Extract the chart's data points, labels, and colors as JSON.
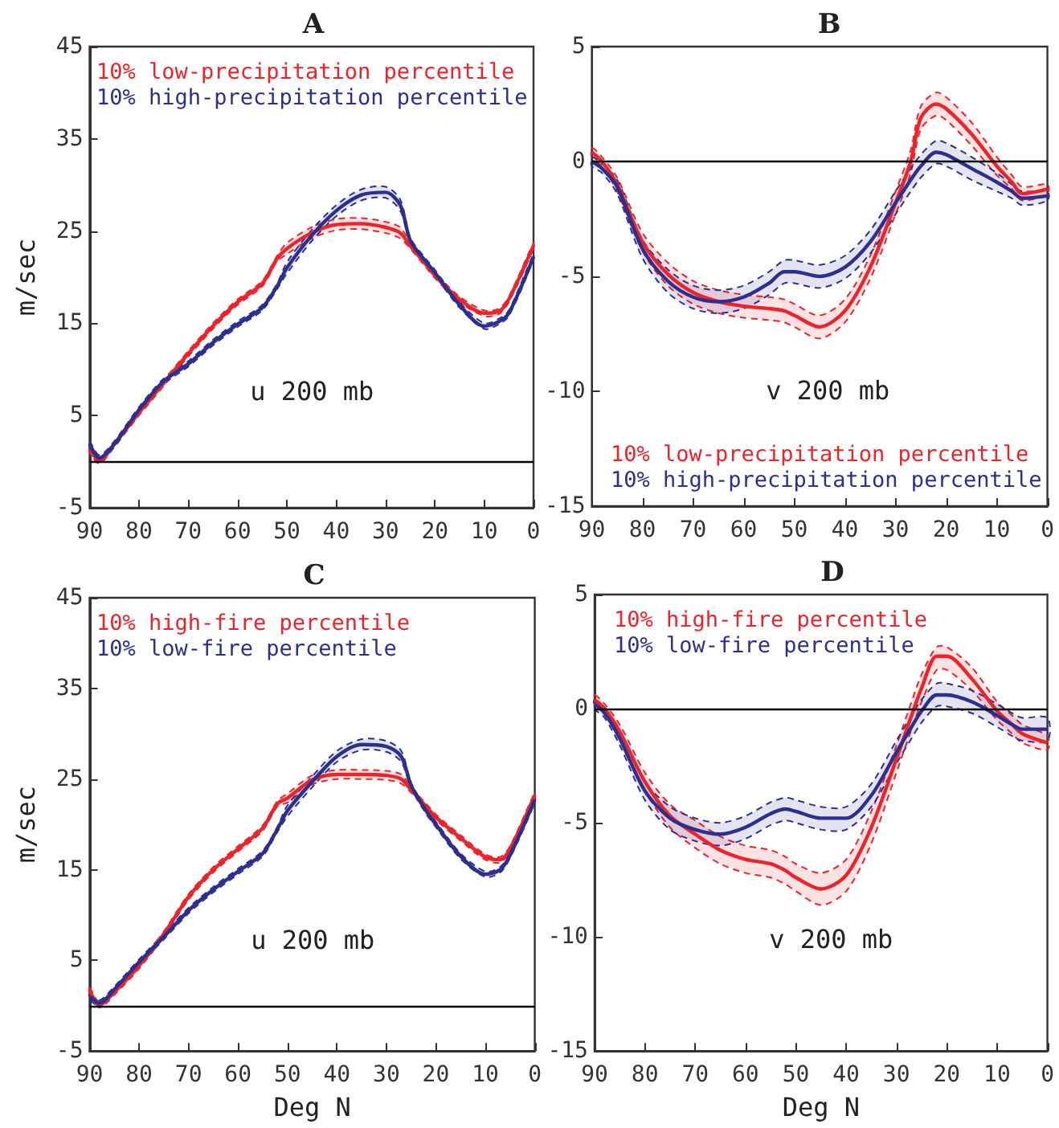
{
  "chart_data": [
    {
      "type": "line",
      "title": "A",
      "ylabel": "m/sec",
      "annotations": [
        "u 200 mb"
      ],
      "xlim": [
        90,
        0
      ],
      "xticks": [
        90,
        80,
        70,
        60,
        50,
        40,
        30,
        20,
        10,
        0
      ],
      "ylim": [
        -5,
        45
      ],
      "yticks": [
        -5,
        5,
        15,
        25,
        35,
        45
      ],
      "legend": "top left",
      "ref_lines": [
        {
          "axis": "y",
          "value": 0,
          "color": "#000000"
        }
      ],
      "x": [
        90,
        88,
        85,
        80,
        75,
        70,
        65,
        60,
        55,
        52,
        50,
        45,
        40,
        35,
        30,
        27,
        25,
        22,
        20,
        15,
        10,
        7,
        5,
        0
      ],
      "series": [
        {
          "name": "10% low-precipitation percentile",
          "color": "#ee2229",
          "values": [
            1.3,
            0.1,
            1.9,
            5.3,
            8.5,
            11.7,
            14.7,
            17.3,
            19.3,
            22.0,
            23.1,
            24.8,
            25.7,
            25.8,
            25.4,
            24.8,
            23.4,
            21.5,
            20.2,
            17.6,
            16.1,
            16.3,
            17.6,
            23.4
          ],
          "lower": [
            1.0,
            -0.2,
            1.6,
            5.0,
            8.2,
            11.4,
            14.4,
            17.0,
            19.0,
            21.7,
            22.5,
            24.2,
            25.1,
            25.2,
            24.8,
            24.2,
            23.1,
            21.2,
            19.9,
            17.3,
            15.8,
            16.0,
            17.3,
            23.1
          ],
          "upper": [
            1.6,
            0.4,
            2.2,
            5.6,
            8.8,
            12.0,
            15.0,
            17.6,
            19.6,
            22.3,
            23.7,
            25.4,
            26.3,
            26.4,
            26.0,
            25.4,
            23.7,
            21.8,
            20.5,
            17.9,
            16.4,
            16.6,
            17.9,
            23.7
          ]
        },
        {
          "name": "10% high-precipitation percentile",
          "color": "#2b2f8f",
          "values": [
            1.9,
            0.4,
            1.9,
            5.6,
            8.7,
            10.6,
            12.9,
            14.9,
            16.7,
            19.0,
            21.0,
            24.5,
            27.2,
            28.9,
            29.2,
            27.8,
            24.0,
            21.8,
            20.5,
            17.0,
            14.7,
            15.2,
            16.1,
            22.2
          ],
          "lower": [
            1.6,
            0.1,
            1.6,
            5.3,
            8.4,
            10.3,
            12.6,
            14.6,
            16.4,
            18.7,
            20.4,
            23.9,
            26.6,
            28.3,
            28.6,
            27.2,
            23.7,
            21.5,
            20.2,
            16.7,
            14.4,
            14.9,
            15.8,
            21.9
          ],
          "upper": [
            2.2,
            0.7,
            2.2,
            5.9,
            9.0,
            10.9,
            13.2,
            15.2,
            17.0,
            19.3,
            21.6,
            25.1,
            27.8,
            29.5,
            29.8,
            28.4,
            24.3,
            22.1,
            20.8,
            17.3,
            15.0,
            15.5,
            16.4,
            22.5
          ]
        }
      ]
    },
    {
      "type": "line",
      "title": "B",
      "annotations": [
        "v 200 mb"
      ],
      "xlim": [
        90,
        0
      ],
      "xticks": [
        90,
        80,
        70,
        60,
        50,
        40,
        30,
        20,
        10,
        0
      ],
      "ylim": [
        -15,
        5
      ],
      "yticks": [
        -15,
        -10,
        -5,
        0,
        5
      ],
      "legend": "bottom left",
      "ref_lines": [
        {
          "axis": "y",
          "value": 0,
          "color": "#000000"
        }
      ],
      "x": [
        90,
        88,
        85,
        80,
        75,
        70,
        65,
        60,
        55,
        52,
        50,
        45,
        40,
        35,
        30,
        27,
        25,
        22,
        20,
        15,
        10,
        7,
        5,
        0
      ],
      "series": [
        {
          "name": "10% low-precipitation percentile",
          "color": "#ee2229",
          "values": [
            0.4,
            0.0,
            -1.0,
            -3.5,
            -4.9,
            -5.7,
            -6.1,
            -6.3,
            -6.4,
            -6.5,
            -6.7,
            -7.2,
            -6.5,
            -4.6,
            -1.8,
            0.0,
            1.9,
            2.5,
            2.3,
            1.2,
            -0.2,
            -0.9,
            -1.4,
            -1.2
          ],
          "lower": [
            0.2,
            -0.2,
            -1.3,
            -3.9,
            -5.4,
            -6.2,
            -6.6,
            -6.8,
            -6.9,
            -7.0,
            -7.2,
            -7.7,
            -7.0,
            -5.1,
            -2.3,
            -0.5,
            1.4,
            2.0,
            1.8,
            0.7,
            -0.6,
            -1.2,
            -1.7,
            -1.4
          ],
          "upper": [
            0.6,
            0.2,
            -0.7,
            -3.1,
            -4.4,
            -5.2,
            -5.6,
            -5.8,
            -5.9,
            -6.0,
            -6.2,
            -6.7,
            -6.0,
            -4.1,
            -1.3,
            0.5,
            2.4,
            3.0,
            2.8,
            1.7,
            0.2,
            -0.6,
            -1.1,
            -1.0
          ]
        },
        {
          "name": "10% high-precipitation percentile",
          "color": "#2b2f8f",
          "values": [
            0.0,
            -0.3,
            -1.1,
            -3.8,
            -5.2,
            -5.9,
            -6.1,
            -5.9,
            -5.3,
            -4.8,
            -4.8,
            -5.0,
            -4.6,
            -3.5,
            -1.8,
            -0.8,
            -0.2,
            0.4,
            0.3,
            -0.3,
            -0.9,
            -1.3,
            -1.6,
            -1.5
          ],
          "lower": [
            -0.2,
            -0.5,
            -1.4,
            -4.2,
            -5.7,
            -6.4,
            -6.6,
            -6.4,
            -5.8,
            -5.3,
            -5.3,
            -5.5,
            -5.1,
            -4.0,
            -2.3,
            -1.3,
            -0.7,
            -0.1,
            -0.2,
            -0.8,
            -1.3,
            -1.6,
            -1.9,
            -1.7
          ],
          "upper": [
            0.2,
            -0.1,
            -0.8,
            -3.4,
            -4.7,
            -5.4,
            -5.6,
            -5.4,
            -4.8,
            -4.3,
            -4.3,
            -4.5,
            -4.1,
            -3.0,
            -1.3,
            -0.3,
            0.3,
            0.9,
            0.8,
            0.2,
            -0.5,
            -1.0,
            -1.3,
            -1.3
          ]
        }
      ]
    },
    {
      "type": "line",
      "title": "C",
      "xlabel": "Deg N",
      "ylabel": "m/sec",
      "annotations": [
        "u 200 mb"
      ],
      "xlim": [
        90,
        0
      ],
      "xticks": [
        90,
        80,
        70,
        60,
        50,
        40,
        30,
        20,
        10,
        0
      ],
      "ylim": [
        -5,
        45
      ],
      "yticks": [
        -5,
        5,
        15,
        25,
        35,
        45
      ],
      "legend": "top left",
      "ref_lines": [
        {
          "axis": "y",
          "value": 0,
          "color": "#000000"
        }
      ],
      "x": [
        90,
        88,
        85,
        80,
        75,
        70,
        65,
        60,
        55,
        52,
        50,
        45,
        40,
        35,
        30,
        27,
        25,
        22,
        20,
        15,
        10,
        7,
        5,
        0
      ],
      "series": [
        {
          "name": "10% high-fire percentile",
          "color": "#ee2229",
          "values": [
            1.7,
            0.1,
            1.5,
            4.4,
            7.9,
            12.0,
            15.0,
            17.3,
            19.6,
            22.3,
            22.9,
            24.9,
            25.5,
            25.5,
            25.4,
            25.0,
            23.8,
            22.0,
            20.8,
            18.5,
            16.4,
            16.1,
            17.3,
            23.2
          ],
          "lower": [
            1.4,
            -0.2,
            1.2,
            4.1,
            7.6,
            11.7,
            14.7,
            17.0,
            19.3,
            22.0,
            22.4,
            24.4,
            25.0,
            25.0,
            24.9,
            24.5,
            23.5,
            21.7,
            20.5,
            18.2,
            16.1,
            15.8,
            17.0,
            22.9
          ],
          "upper": [
            2.0,
            0.4,
            1.8,
            4.7,
            8.2,
            12.3,
            15.3,
            17.6,
            19.9,
            22.6,
            23.4,
            25.4,
            26.0,
            26.0,
            25.9,
            25.5,
            24.1,
            22.3,
            21.1,
            18.8,
            16.7,
            16.4,
            17.6,
            23.5
          ]
        },
        {
          "name": "10% low-fire percentile",
          "color": "#2b2f8f",
          "values": [
            1.0,
            0.3,
            1.8,
            4.8,
            7.6,
            10.5,
            12.8,
            14.8,
            16.8,
            19.5,
            21.5,
            24.7,
            27.5,
            28.8,
            28.6,
            27.5,
            24.3,
            21.5,
            20.0,
            16.5,
            14.5,
            15.0,
            16.6,
            22.7
          ],
          "lower": [
            0.7,
            0.0,
            1.5,
            4.5,
            7.3,
            10.2,
            12.5,
            14.5,
            16.5,
            19.2,
            20.9,
            24.1,
            26.9,
            28.2,
            28.0,
            26.9,
            24.0,
            21.2,
            19.7,
            16.2,
            14.2,
            14.7,
            16.3,
            22.4
          ],
          "upper": [
            1.3,
            0.6,
            2.1,
            5.1,
            7.9,
            10.8,
            13.1,
            15.1,
            17.1,
            19.8,
            22.1,
            25.3,
            28.1,
            29.4,
            29.2,
            28.1,
            24.6,
            21.8,
            20.3,
            16.8,
            14.8,
            15.3,
            16.9,
            23.0
          ]
        }
      ]
    },
    {
      "type": "line",
      "title": "D",
      "xlabel": "Deg N",
      "annotations": [
        "v 200 mb"
      ],
      "xlim": [
        90,
        0
      ],
      "xticks": [
        90,
        80,
        70,
        60,
        50,
        40,
        30,
        20,
        10,
        0
      ],
      "ylim": [
        -15,
        5
      ],
      "yticks": [
        -15,
        -10,
        -5,
        0,
        5
      ],
      "legend": "top left",
      "ref_lines": [
        {
          "axis": "y",
          "value": 0,
          "color": "#000000"
        }
      ],
      "x": [
        90,
        88,
        85,
        80,
        75,
        70,
        65,
        60,
        55,
        52,
        50,
        45,
        40,
        35,
        30,
        27,
        25,
        22,
        20,
        15,
        10,
        7,
        5,
        0
      ],
      "series": [
        {
          "name": "10% high-fire percentile",
          "color": "#ee2229",
          "values": [
            0.4,
            0.0,
            -1.0,
            -3.2,
            -4.7,
            -5.5,
            -6.2,
            -6.6,
            -6.8,
            -7.1,
            -7.4,
            -7.9,
            -7.3,
            -5.2,
            -2.2,
            -0.3,
            0.9,
            2.3,
            2.3,
            1.3,
            -0.1,
            -0.7,
            -1.1,
            -1.5
          ],
          "lower": [
            0.2,
            -0.2,
            -1.3,
            -3.6,
            -5.2,
            -6.1,
            -6.8,
            -7.2,
            -7.4,
            -7.7,
            -8.0,
            -8.6,
            -8.0,
            -5.9,
            -2.8,
            -0.9,
            0.3,
            1.7,
            1.7,
            0.8,
            -0.5,
            -1.1,
            -1.5,
            -1.8
          ],
          "upper": [
            0.6,
            0.2,
            -0.7,
            -2.8,
            -4.2,
            -4.9,
            -5.6,
            -6.0,
            -6.2,
            -6.5,
            -6.8,
            -7.2,
            -6.6,
            -4.5,
            -1.6,
            0.3,
            1.5,
            2.7,
            2.7,
            1.8,
            0.3,
            -0.3,
            -0.7,
            -1.2
          ]
        },
        {
          "name": "10% low-fire percentile",
          "color": "#2b2f8f",
          "values": [
            0.2,
            -0.2,
            -1.3,
            -3.6,
            -4.8,
            -5.3,
            -5.5,
            -5.2,
            -4.6,
            -4.4,
            -4.5,
            -4.8,
            -4.8,
            -3.8,
            -1.9,
            -0.8,
            -0.1,
            0.6,
            0.6,
            0.3,
            -0.3,
            -0.7,
            -0.9,
            -0.9
          ],
          "lower": [
            0.0,
            -0.4,
            -1.6,
            -4.0,
            -5.3,
            -5.8,
            -6.0,
            -5.7,
            -5.1,
            -4.9,
            -5.0,
            -5.3,
            -5.3,
            -4.3,
            -2.4,
            -1.3,
            -0.6,
            0.1,
            0.1,
            -0.2,
            -0.8,
            -1.2,
            -1.4,
            -1.4
          ],
          "upper": [
            0.4,
            0.0,
            -1.0,
            -3.2,
            -4.3,
            -4.8,
            -5.0,
            -4.7,
            -4.1,
            -3.9,
            -4.0,
            -4.3,
            -4.3,
            -3.3,
            -1.4,
            -0.3,
            0.4,
            1.1,
            1.1,
            0.8,
            0.2,
            -0.2,
            -0.4,
            -0.4
          ]
        }
      ]
    }
  ]
}
